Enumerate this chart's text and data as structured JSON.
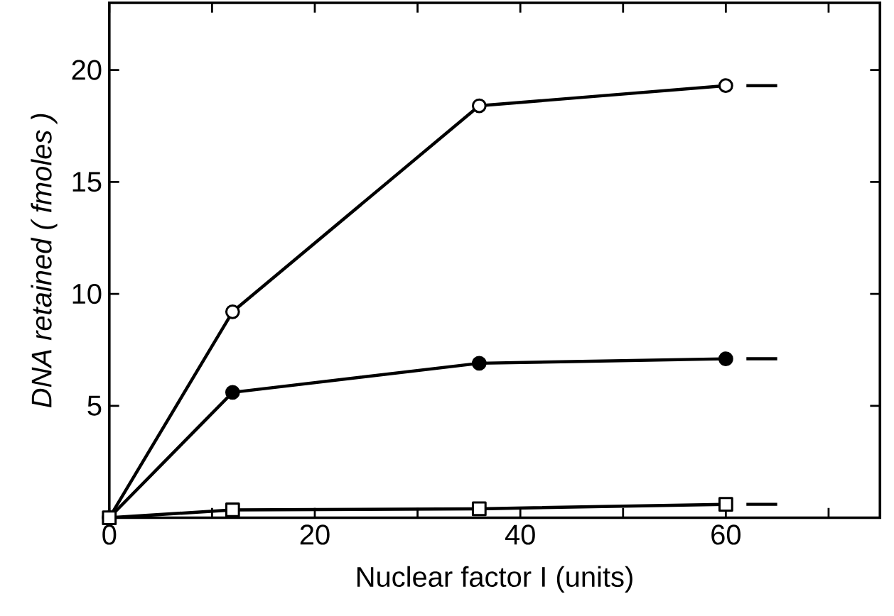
{
  "chart_data": {
    "type": "line",
    "xlabel": "Nuclear factor I (units)",
    "ylabel": "DNA retained ( fmoles )",
    "xlim": [
      0,
      75
    ],
    "ylim": [
      0,
      23
    ],
    "xticks": [
      0,
      {
        "value": 10,
        "label": null
      },
      20,
      {
        "value": 30,
        "label": null
      },
      40,
      {
        "value": 50,
        "label": null
      },
      60,
      {
        "value": 70,
        "label": null
      }
    ],
    "yticks": [
      5,
      10,
      15,
      20
    ],
    "grid": false,
    "line_style": "solid",
    "series": [
      {
        "color": "#000000",
        "marker": "circle",
        "colors": [
          "#ffffff",
          "#ffffff",
          "#ffffff",
          "#ffffff"
        ],
        "x": [
          0,
          12,
          36,
          60
        ],
        "values": [
          0,
          9.2,
          18.4,
          19.3
        ]
      },
      {
        "color": "#000000",
        "marker": "circle",
        "colors": [
          "#000000",
          "#000000",
          "#000000",
          "#000000"
        ],
        "x": [
          0,
          12,
          36,
          60
        ],
        "values": [
          0,
          5.6,
          6.9,
          7.1
        ]
      },
      {
        "color": "#000000",
        "marker": "square",
        "colors": [
          "#ffffff",
          "#ffffff",
          "#ffffff",
          "#ffffff"
        ],
        "x": [
          0,
          12,
          36,
          60
        ],
        "values": [
          0,
          0.35,
          0.4,
          0.6
        ]
      },
      {
        "color": "#000000",
        "marker": "none",
        "x": [
          62,
          65
        ],
        "values": [
          19.3,
          19.3
        ]
      },
      {
        "color": "#000000",
        "marker": "none",
        "x": [
          62,
          65
        ],
        "values": [
          7.1,
          7.1
        ]
      },
      {
        "color": "#000000",
        "marker": "none",
        "x": [
          62,
          65
        ],
        "values": [
          0.6,
          0.6
        ]
      }
    ]
  }
}
